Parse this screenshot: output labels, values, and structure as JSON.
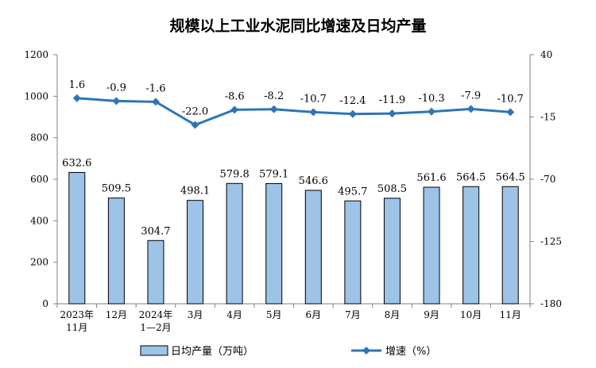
{
  "chart_data": {
    "type": "bar",
    "title": "规模以上工业水泥同比增速及日均产量",
    "categories": [
      [
        "2023年",
        "11月"
      ],
      [
        "12月"
      ],
      [
        "2024年",
        "1—2月"
      ],
      [
        "3月"
      ],
      [
        "4月"
      ],
      [
        "5月"
      ],
      [
        "6月"
      ],
      [
        "7月"
      ],
      [
        "8月"
      ],
      [
        "9月"
      ],
      [
        "10月"
      ],
      [
        "11月"
      ]
    ],
    "series": [
      {
        "name": "日均产量（万吨）",
        "type": "bar",
        "axis": "left",
        "color": "#9dc3e6",
        "values": [
          632.6,
          509.5,
          304.7,
          498.1,
          579.8,
          579.1,
          546.6,
          495.7,
          508.5,
          561.6,
          564.5,
          564.5
        ],
        "labels": [
          "632.6",
          "509.5",
          "304.7",
          "498.1",
          "579.8",
          "579.1",
          "546.6",
          "495.7",
          "508.5",
          "561.6",
          "564.5",
          "564.5"
        ]
      },
      {
        "name": "增速（%）",
        "type": "line",
        "axis": "right",
        "color": "#2e75b6",
        "values": [
          1.6,
          -0.9,
          -1.6,
          -22.0,
          -8.6,
          -8.2,
          -10.7,
          -12.4,
          -11.9,
          -10.3,
          -7.9,
          -10.7
        ],
        "labels": [
          "1.6",
          "-0.9",
          "-1.6",
          "-22.0",
          "-8.6",
          "-8.2",
          "-10.7",
          "-12.4",
          "-11.9",
          "-10.3",
          "-7.9",
          "-10.7"
        ]
      }
    ],
    "y_left": {
      "min": 0,
      "max": 1200,
      "ticks": [
        0,
        200,
        400,
        600,
        800,
        1000,
        1200
      ]
    },
    "y_right": {
      "min": -180,
      "max": 40,
      "ticks": [
        40,
        -15,
        -70,
        -125,
        -180
      ]
    },
    "grid": false,
    "legend_position": "bottom"
  }
}
